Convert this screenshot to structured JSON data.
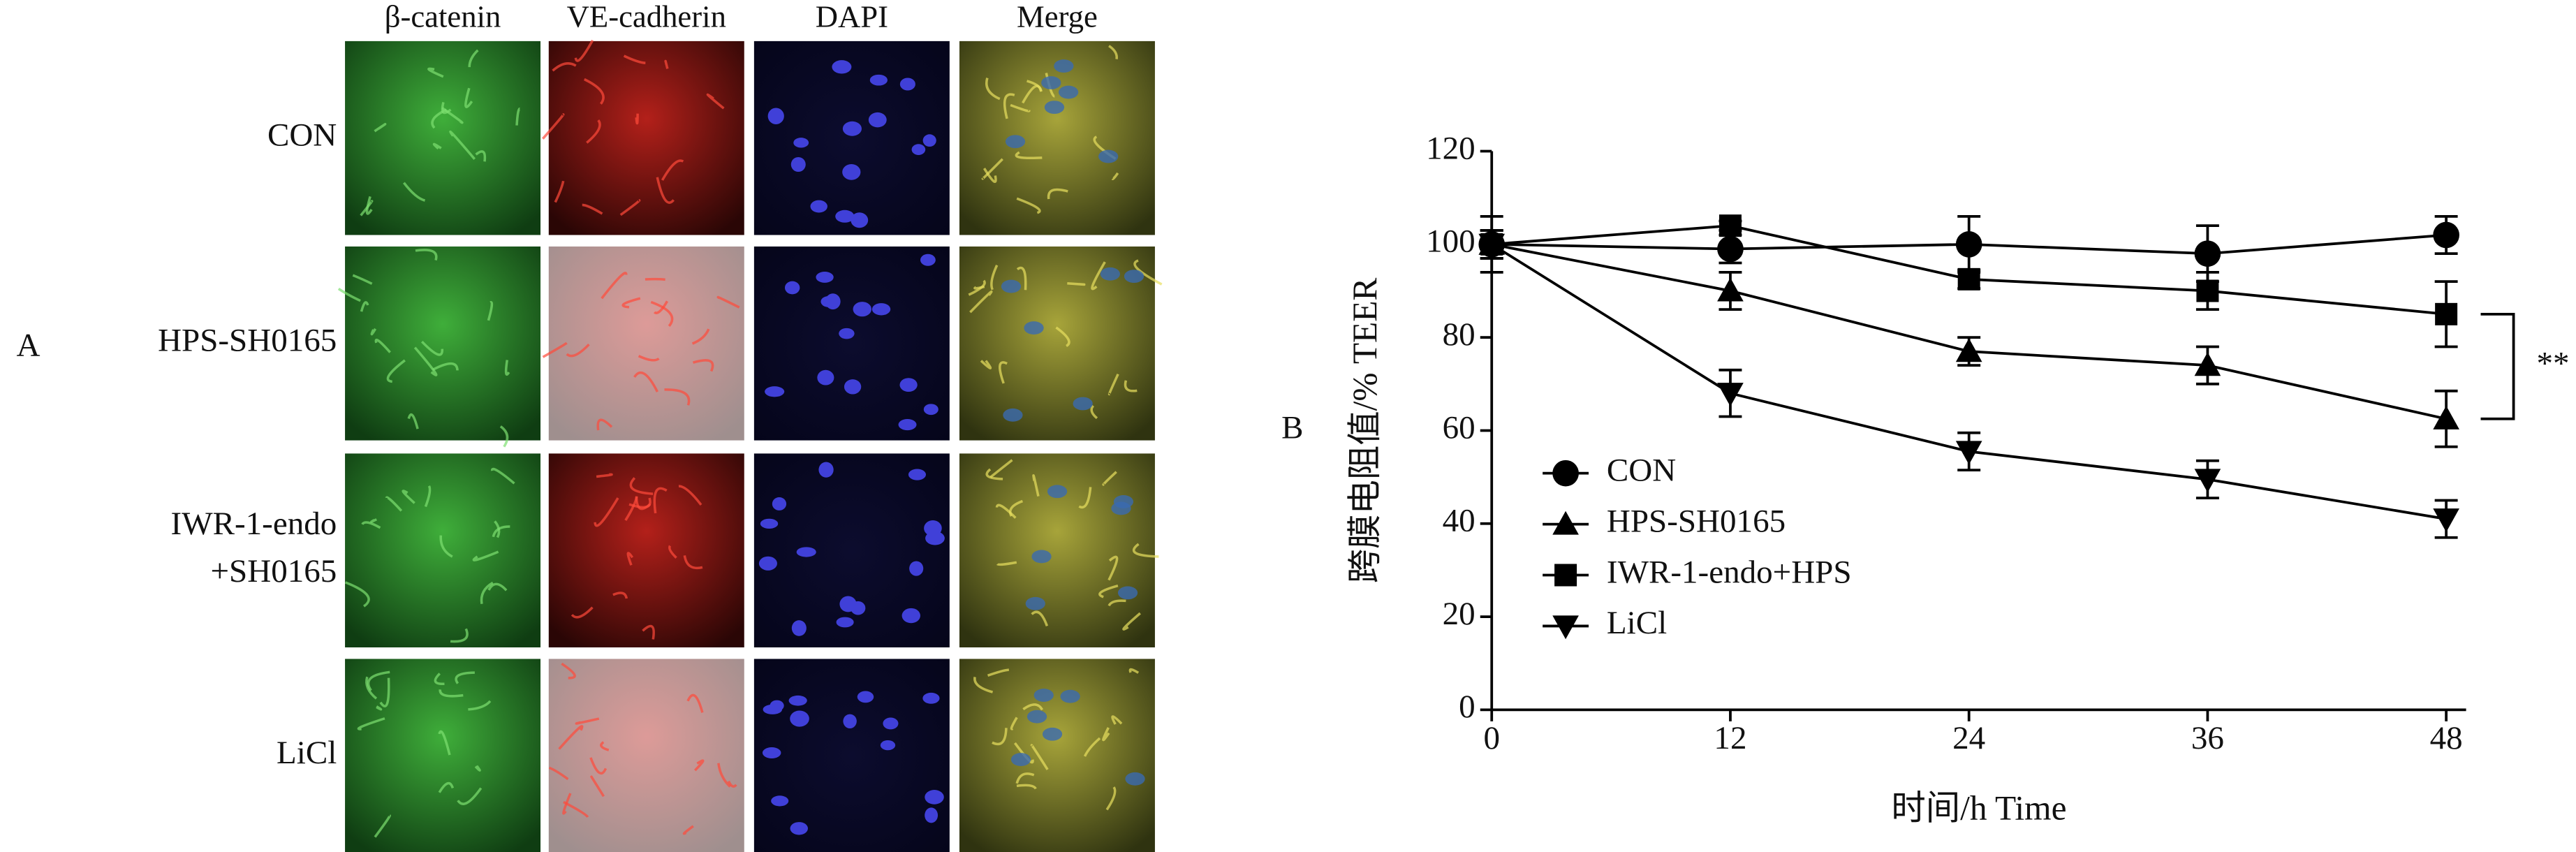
{
  "panel_a": {
    "label": "A",
    "columns": [
      "β-catenin",
      "VE-cadherin",
      "DAPI",
      "Merge"
    ],
    "rows": [
      [
        "CON"
      ],
      [
        "HPS-SH0165"
      ],
      [
        "IWR-1-endo",
        "+SH0165"
      ],
      [
        "LiCl"
      ]
    ]
  },
  "panel_b": {
    "label": "B"
  },
  "chart_data": {
    "type": "line",
    "x": [
      0,
      12,
      24,
      36,
      48
    ],
    "xlim": [
      0,
      49
    ],
    "xticks": [
      0,
      12,
      24,
      36,
      48
    ],
    "ylim": [
      0,
      120
    ],
    "yticks": [
      0,
      20,
      40,
      60,
      80,
      100,
      120
    ],
    "xlabel": "时间/h Time",
    "ylabel": "跨膜电阻值/% TEER",
    "legend": "lower left",
    "series": [
      {
        "name": "CON",
        "color": "#000000",
        "marker": "circle",
        "values": [
          100,
          99,
          100,
          98,
          102
        ],
        "errors": [
          6,
          3,
          6,
          6,
          4
        ]
      },
      {
        "name": "HPS-SH0165",
        "color": "#000000",
        "marker": "triangle",
        "values": [
          100,
          90,
          77,
          74,
          62.5
        ],
        "errors": [
          3,
          4,
          3,
          4,
          6
        ]
      },
      {
        "name": "IWR-1-endo+HPS",
        "color": "#000000",
        "marker": "square",
        "values": [
          100,
          104,
          92.5,
          90,
          85
        ],
        "errors": [
          3,
          1,
          2,
          4,
          7
        ]
      },
      {
        "name": "LiCl",
        "color": "#000000",
        "marker": "triangle-down",
        "values": [
          100,
          68,
          55.5,
          49.5,
          41
        ],
        "errors": [
          3,
          5,
          4,
          4,
          4
        ]
      }
    ],
    "annotation": {
      "text": "**",
      "from_series": 2,
      "to_series": 1,
      "at": 4
    }
  }
}
